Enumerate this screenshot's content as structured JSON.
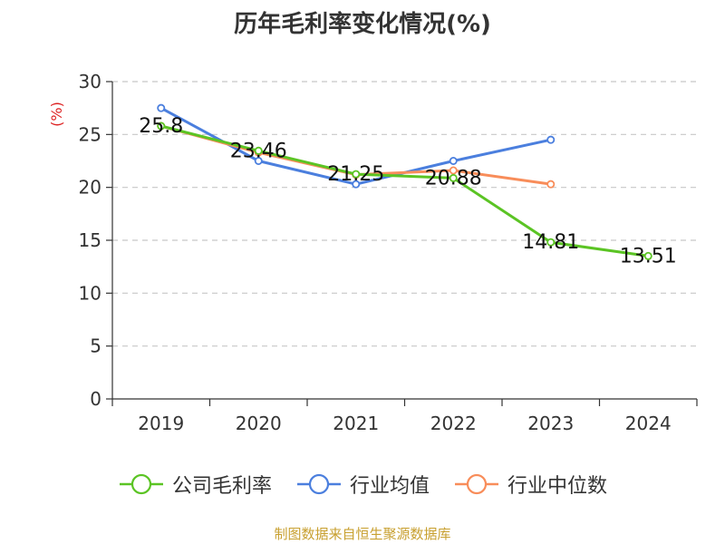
{
  "chart_data": {
    "type": "line",
    "title": "历年毛利率变化情况(%)",
    "ylabel": "(%)",
    "categories": [
      "2019",
      "2020",
      "2021",
      "2022",
      "2023",
      "2024"
    ],
    "ylim": [
      0,
      30
    ],
    "yticks": [
      0,
      5,
      10,
      15,
      20,
      25,
      30
    ],
    "grid": true,
    "legend_position": "bottom",
    "series": [
      {
        "name": "公司毛利率",
        "color": "#5bc424",
        "values": [
          25.8,
          23.46,
          21.25,
          20.88,
          14.81,
          13.51
        ],
        "labels": [
          "25.8",
          "23.46",
          "21.25",
          "20.88",
          "14.81",
          "13.51"
        ]
      },
      {
        "name": "行业均值",
        "color": "#4b7fde",
        "values": [
          27.5,
          22.5,
          20.3,
          22.5,
          24.5,
          null
        ],
        "labels": []
      },
      {
        "name": "行业中位数",
        "color": "#f88d5a",
        "values": [
          25.8,
          23.3,
          21.2,
          21.6,
          20.3,
          null
        ],
        "labels": []
      }
    ]
  },
  "source": "制图数据来自恒生聚源数据库"
}
